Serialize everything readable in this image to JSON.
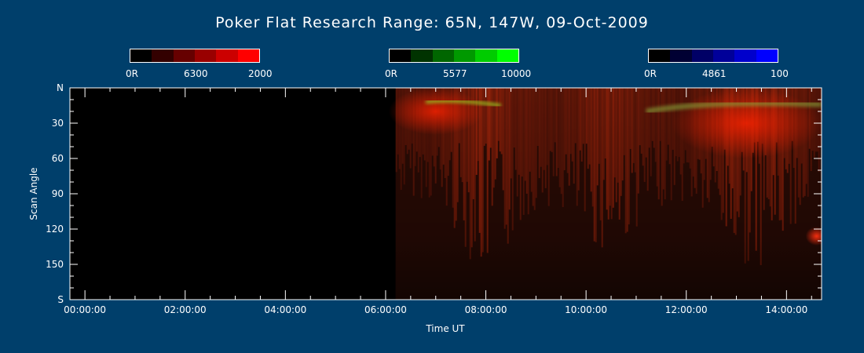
{
  "chart_data": {
    "type": "heatmap",
    "title": "Poker Flat Research Range: 65N, 147W, 09-Oct-2009",
    "xlabel": "Time UT",
    "ylabel": "Scan Angle",
    "x_ticks": [
      "00:00:00",
      "02:00:00",
      "04:00:00",
      "06:00:00",
      "08:00:00",
      "10:00:00",
      "12:00:00",
      "14:00:00"
    ],
    "x_tick_hours": [
      0,
      2,
      4,
      6,
      8,
      10,
      12,
      14
    ],
    "xlim_hours": [
      -0.3,
      14.7
    ],
    "y_ticks": [
      "N",
      "30",
      "60",
      "90",
      "120",
      "150",
      "S"
    ],
    "y_tick_values": [
      0,
      30,
      60,
      90,
      120,
      150,
      180
    ],
    "ylim": [
      0,
      180
    ],
    "data_start_hour": 6.2,
    "colorbars": [
      {
        "name": "6300",
        "min_label": "0R",
        "max_label": "2000",
        "colors": [
          "#000000",
          "#330000",
          "#660000",
          "#990000",
          "#cc0000",
          "#ff0000"
        ]
      },
      {
        "name": "5577",
        "min_label": "0R",
        "max_label": "10000",
        "colors": [
          "#000000",
          "#003300",
          "#006600",
          "#009900",
          "#00cc00",
          "#00ff00"
        ]
      },
      {
        "name": "4861",
        "min_label": "0R",
        "max_label": "100",
        "colors": [
          "#000000",
          "#000033",
          "#000066",
          "#000099",
          "#0000cc",
          "#0000ff"
        ]
      }
    ]
  }
}
